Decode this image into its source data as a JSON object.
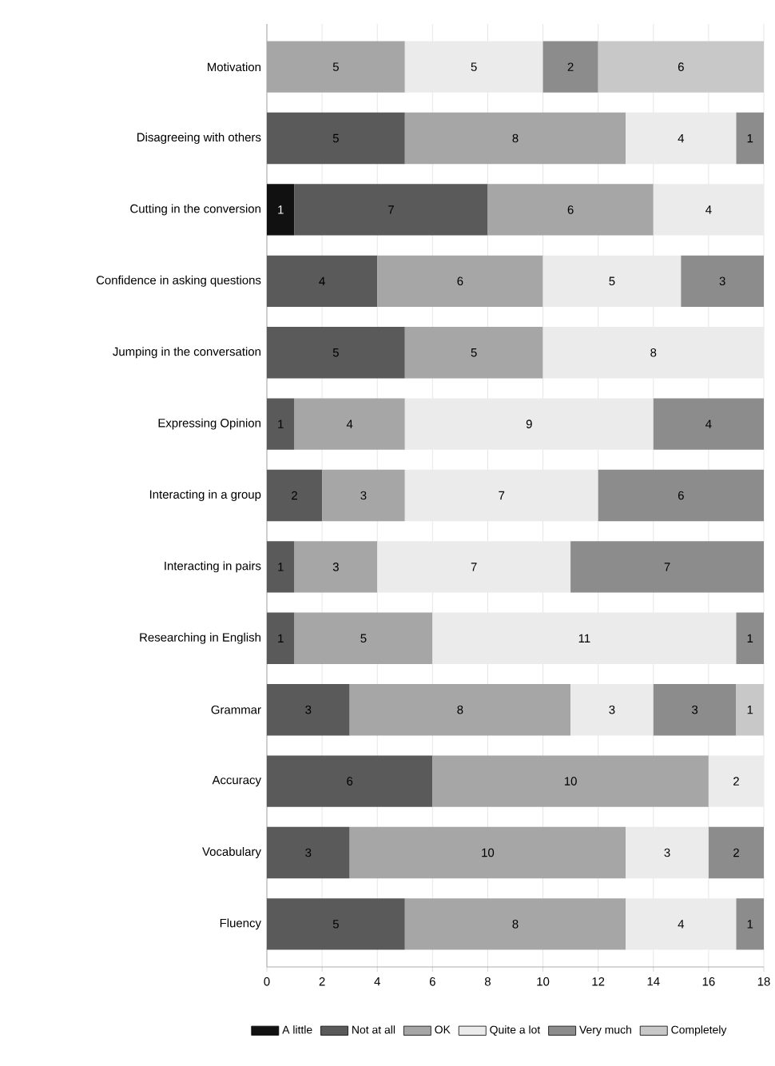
{
  "chart_data": {
    "type": "bar",
    "orientation": "horizontal",
    "stacked": true,
    "data_labels": true,
    "grid": "x",
    "legend": "bottom",
    "categories": [
      "Motivation",
      "Disagreeing with others",
      "Cutting in the conversion",
      "Confidence in asking questions",
      "Jumping in the conversation",
      "Expressing Opinion",
      "Interacting in a group",
      "Interacting in pairs",
      "Researching in English",
      "Grammar",
      "Accuracy",
      "Vocabulary",
      "Fluency"
    ],
    "xlim": [
      0,
      18
    ],
    "xticks": [
      0,
      2,
      4,
      6,
      8,
      10,
      12,
      14,
      16,
      18
    ],
    "series": [
      {
        "name": "A little",
        "color": "#111111",
        "values": [
          null,
          null,
          1,
          null,
          null,
          null,
          null,
          null,
          null,
          null,
          null,
          null,
          null
        ]
      },
      {
        "name": "Not at all",
        "color": "#5a5a5a",
        "values": [
          null,
          5,
          7,
          4,
          5,
          1,
          2,
          1,
          1,
          3,
          6,
          3,
          5
        ]
      },
      {
        "name": "OK",
        "color": "#a6a6a6",
        "values": [
          5,
          8,
          6,
          6,
          5,
          4,
          3,
          3,
          5,
          8,
          10,
          10,
          8
        ]
      },
      {
        "name": "Quite a lot",
        "color": "#ebebeb",
        "values": [
          5,
          4,
          4,
          5,
          8,
          9,
          7,
          7,
          11,
          3,
          2,
          3,
          4
        ]
      },
      {
        "name": "Very much",
        "color": "#8c8c8c",
        "values": [
          2,
          1,
          null,
          3,
          null,
          4,
          6,
          7,
          1,
          3,
          null,
          2,
          1
        ]
      },
      {
        "name": "Completely",
        "color": "#c8c8c8",
        "values": [
          6,
          null,
          null,
          null,
          null,
          null,
          null,
          null,
          null,
          1,
          null,
          null,
          null
        ]
      }
    ]
  }
}
